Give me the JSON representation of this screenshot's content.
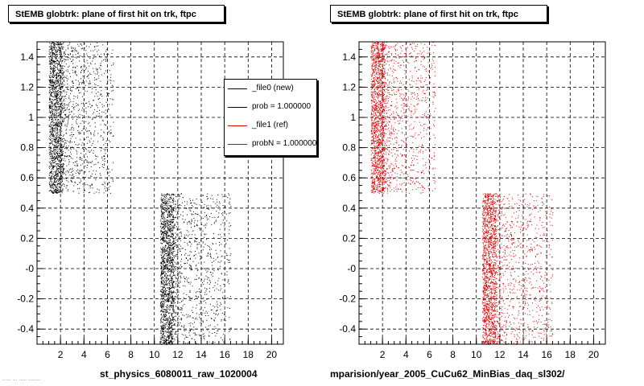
{
  "page": {
    "footer": "...... ... ..... ........"
  },
  "colors": {
    "new": "#000000",
    "ref": "#dd0000",
    "grid": "#000000"
  },
  "panels": [
    {
      "title": "StEMB globtrk: plane of first hit on trk, ftpc",
      "xlabel": "st_physics_6080011_raw_1020004"
    },
    {
      "title": "StEMB globtrk: plane of first hit on trk, ftpc",
      "xlabel": "mparision/year_2005_CuCu62_MinBias_daq_sl302/"
    }
  ],
  "legend": {
    "entries": [
      {
        "label": "_file0 (new)",
        "color": "#000000"
      },
      {
        "label": "prob = 1.000000",
        "color": "#000000"
      },
      {
        "label": "_file1 (ref)",
        "color": "#dd0000"
      },
      {
        "label": "probN = 1.000000",
        "color": "#dd0000"
      }
    ]
  },
  "chart_data": [
    {
      "type": "scatter",
      "title": "StEMB globtrk: plane of first hit on trk, ftpc",
      "xlabel": "st_physics_6080011_raw_1020004",
      "ylabel": "",
      "xlim": [
        0,
        21
      ],
      "ylim": [
        -0.5,
        1.5
      ],
      "grid": true,
      "x_ticks": [
        "2",
        "4",
        "6",
        "8",
        "10",
        "12",
        "14",
        "16",
        "18",
        "20"
      ],
      "y_ticks": [
        "-0.4",
        "-0.2",
        "-0",
        "0.2",
        "0.4",
        "0.6",
        "0.8",
        "1",
        "1.2",
        "1.4"
      ],
      "series": [
        {
          "name": "_file0 (new)",
          "color": "#000000",
          "clusters": [
            {
              "x_range": [
                1,
                6.5
              ],
              "y_range": [
                0.5,
                1.5
              ],
              "dense_x_range": [
                1,
                2.1
              ]
            },
            {
              "x_range": [
                10.5,
                16.5
              ],
              "y_range": [
                -0.5,
                0.5
              ],
              "dense_x_range": [
                10.5,
                11.6
              ]
            }
          ]
        }
      ]
    },
    {
      "type": "scatter",
      "title": "StEMB globtrk: plane of first hit on trk, ftpc",
      "xlabel": "mparision/year_2005_CuCu62_MinBias_daq_sl302/",
      "ylabel": "",
      "xlim": [
        0,
        21
      ],
      "ylim": [
        -0.5,
        1.5
      ],
      "grid": true,
      "x_ticks": [
        "2",
        "4",
        "6",
        "8",
        "10",
        "12",
        "14",
        "16",
        "18",
        "20"
      ],
      "y_ticks": [
        "-0.4",
        "-0.2",
        "-0",
        "0.2",
        "0.4",
        "0.6",
        "0.8",
        "1",
        "1.2",
        "1.4"
      ],
      "series": [
        {
          "name": "_file1 (ref)",
          "color": "#dd0000",
          "clusters": [
            {
              "x_range": [
                1,
                6.5
              ],
              "y_range": [
                0.5,
                1.5
              ],
              "dense_x_range": [
                1,
                2.1
              ]
            },
            {
              "x_range": [
                10.5,
                16.5
              ],
              "y_range": [
                -0.5,
                0.5
              ],
              "dense_x_range": [
                10.5,
                11.6
              ]
            }
          ]
        }
      ]
    }
  ]
}
